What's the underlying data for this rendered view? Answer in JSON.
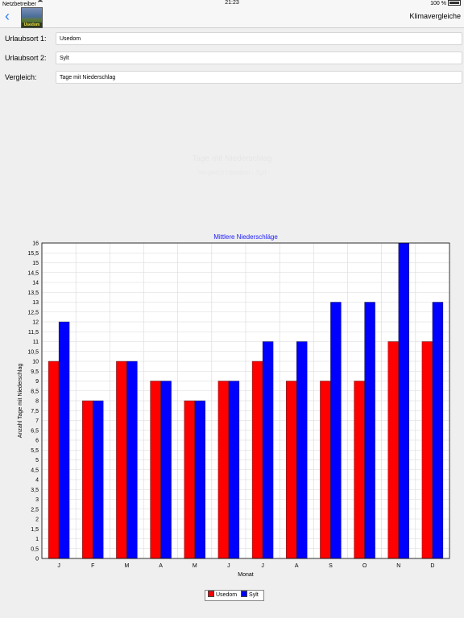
{
  "status": {
    "carrier": "Netzbetreiber",
    "time": "21:23",
    "battery": "100 %"
  },
  "nav": {
    "title": "Klimavergleiche",
    "logo_text": "Usedom"
  },
  "form": {
    "fields": [
      {
        "label": "Urlaubsort 1:",
        "value": "Usedom"
      },
      {
        "label": "Urlaubsort 2:",
        "value": "Sylt"
      },
      {
        "label": "Vergleich:",
        "value": "Tage mit Niederschlag"
      }
    ]
  },
  "faded": {
    "title": "Tage mit Niederschlag",
    "subtitle": "Vergleich Usedom - Sylt"
  },
  "colors": {
    "series1": "#ff0000",
    "series2": "#0000ff"
  },
  "chart_data": {
    "type": "bar",
    "title": "Mittlere Niederschläge",
    "xlabel": "Monat",
    "ylabel": "Anzahl Tage mit Niederschlag",
    "categories": [
      "J",
      "F",
      "M",
      "A",
      "M",
      "J",
      "J",
      "A",
      "S",
      "O",
      "N",
      "D"
    ],
    "ylim": [
      0,
      16
    ],
    "ytick_step": 0.5,
    "grid": true,
    "legend_position": "bottom-center",
    "series": [
      {
        "name": "Usedom",
        "color": "#ff0000",
        "values": [
          10,
          8,
          10,
          9,
          8,
          9,
          10,
          9,
          9,
          9,
          11,
          11
        ]
      },
      {
        "name": "Sylt",
        "color": "#0000ff",
        "values": [
          12,
          8,
          10,
          9,
          8,
          9,
          11,
          11,
          13,
          13,
          16,
          13
        ]
      }
    ]
  }
}
